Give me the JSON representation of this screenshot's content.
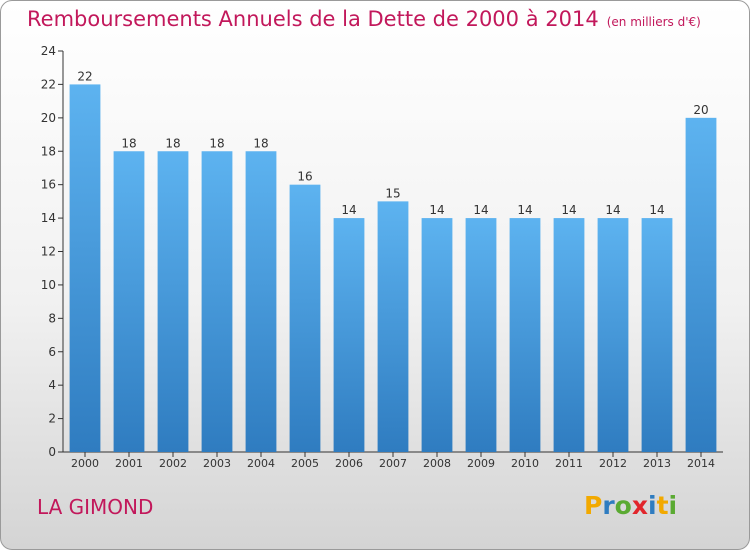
{
  "title": "Remboursements Annuels de la Dette de 2000 à 2014",
  "subtitle": "(en milliers d'€)",
  "footer": {
    "city": "LA GIMOND",
    "logo_letters": [
      "P",
      "r",
      "o",
      "x",
      "i",
      "t",
      "i"
    ],
    "logo_colors": [
      "#f2a900",
      "#2f7cc0",
      "#5aaa32",
      "#e1262c",
      "#2f7cc0",
      "#f2a900",
      "#5aaa32"
    ]
  },
  "chart_data": {
    "type": "bar",
    "title": "Remboursements Annuels de la Dette de 2000 à 2014",
    "subtitle": "(en milliers d'€)",
    "categories": [
      "2000",
      "2001",
      "2002",
      "2003",
      "2004",
      "2005",
      "2006",
      "2007",
      "2008",
      "2009",
      "2010",
      "2011",
      "2012",
      "2013",
      "2014"
    ],
    "values": [
      22,
      18,
      18,
      18,
      18,
      16,
      14,
      15,
      14,
      14,
      14,
      14,
      14,
      14,
      20
    ],
    "ylim": [
      0,
      24
    ],
    "yticks": [
      0,
      2,
      4,
      6,
      8,
      10,
      12,
      14,
      16,
      18,
      20,
      22,
      24
    ],
    "grid": false,
    "bar_color": "#4a9fe0"
  }
}
